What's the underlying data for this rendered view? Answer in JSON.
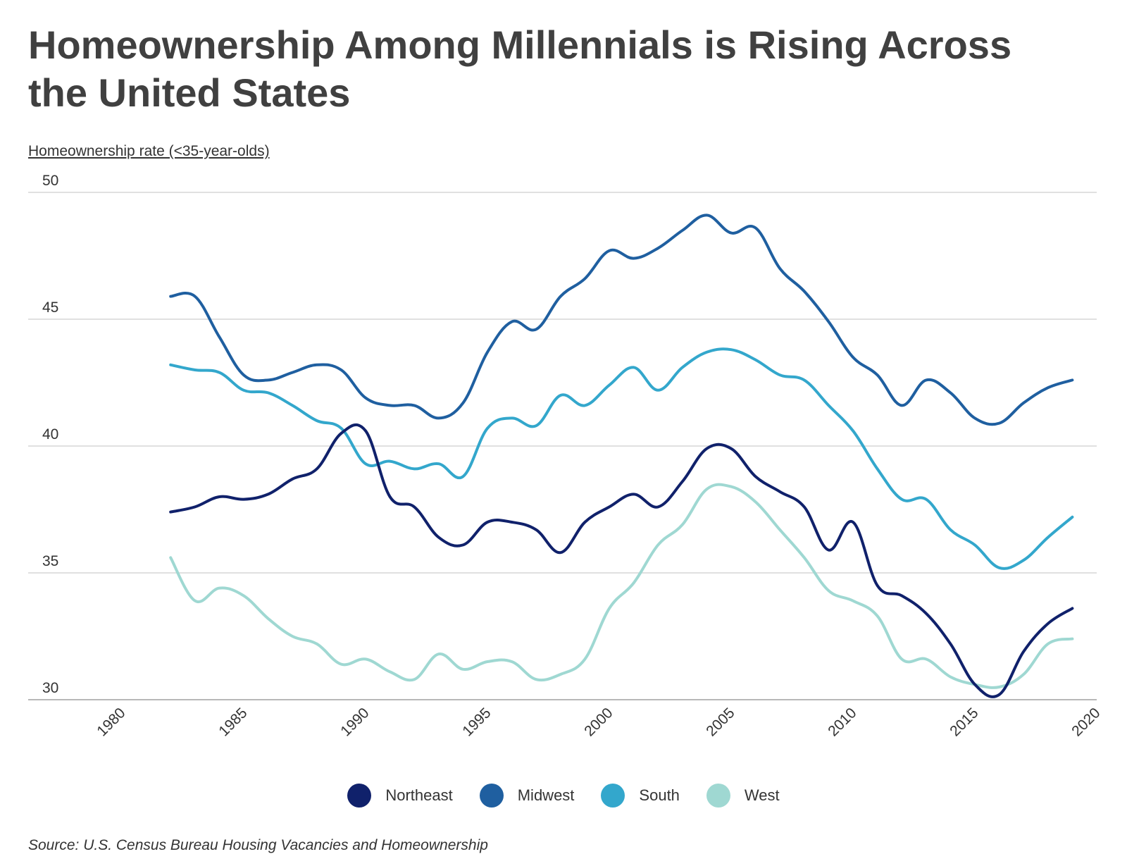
{
  "chart_data": {
    "type": "line",
    "title": "Homeownership Among Millennials is Rising Across the United States",
    "ylabel": "Homeownership rate (<35-year-olds)",
    "xlabel": "",
    "xlim": [
      1980,
      2020
    ],
    "ylim": [
      30,
      50
    ],
    "x_ticks": [
      1980,
      1985,
      1990,
      1995,
      2000,
      2005,
      2010,
      2015,
      2020
    ],
    "y_ticks": [
      30,
      35,
      40,
      45,
      50
    ],
    "grid": true,
    "legend_position": "bottom",
    "source": "Source: U.S. Census Bureau Housing Vacancies and Homeownership",
    "x": [
      1982,
      1983,
      1984,
      1985,
      1986,
      1987,
      1988,
      1989,
      1990,
      1991,
      1992,
      1993,
      1994,
      1995,
      1996,
      1997,
      1998,
      1999,
      2000,
      2001,
      2002,
      2003,
      2004,
      2005,
      2006,
      2007,
      2008,
      2009,
      2010,
      2011,
      2012,
      2013,
      2014,
      2015,
      2016,
      2017,
      2018,
      2019
    ],
    "series": [
      {
        "name": "Northeast",
        "color": "#10216b",
        "values": [
          37.4,
          37.6,
          38.0,
          37.9,
          38.1,
          38.7,
          39.1,
          40.5,
          40.6,
          38.0,
          37.6,
          36.4,
          36.1,
          37.0,
          37.0,
          36.7,
          35.8,
          37.0,
          37.6,
          38.1,
          37.6,
          38.6,
          39.9,
          39.9,
          38.8,
          38.2,
          37.6,
          35.9,
          37.0,
          34.5,
          34.1,
          33.4,
          32.2,
          30.6,
          30.2,
          31.9,
          33.0,
          33.6
        ]
      },
      {
        "name": "Midwest",
        "color": "#1f5fa0",
        "values": [
          45.9,
          45.9,
          44.3,
          42.8,
          42.6,
          42.9,
          43.2,
          43.0,
          41.9,
          41.6,
          41.6,
          41.1,
          41.7,
          43.7,
          44.9,
          44.6,
          45.9,
          46.6,
          47.7,
          47.4,
          47.8,
          48.5,
          49.1,
          48.4,
          48.6,
          47.0,
          46.1,
          44.9,
          43.5,
          42.8,
          41.6,
          42.6,
          42.1,
          41.1,
          40.9,
          41.7,
          42.3,
          42.6
        ]
      },
      {
        "name": "South",
        "color": "#33a7cc",
        "values": [
          43.2,
          43.0,
          42.9,
          42.2,
          42.1,
          41.6,
          41.0,
          40.7,
          39.3,
          39.4,
          39.1,
          39.3,
          38.8,
          40.7,
          41.1,
          40.8,
          42.0,
          41.6,
          42.4,
          43.1,
          42.2,
          43.1,
          43.7,
          43.8,
          43.4,
          42.8,
          42.6,
          41.6,
          40.6,
          39.1,
          37.9,
          37.9,
          36.7,
          36.1,
          35.2,
          35.5,
          36.4,
          37.2
        ]
      },
      {
        "name": "West",
        "color": "#9fd8d2",
        "values": [
          35.6,
          33.9,
          34.4,
          34.1,
          33.2,
          32.5,
          32.2,
          31.4,
          31.6,
          31.1,
          30.8,
          31.8,
          31.2,
          31.5,
          31.5,
          30.8,
          31.0,
          31.6,
          33.6,
          34.6,
          36.1,
          36.9,
          38.3,
          38.4,
          37.8,
          36.7,
          35.6,
          34.3,
          33.9,
          33.3,
          31.6,
          31.6,
          30.9,
          30.6,
          30.5,
          31.0,
          32.2,
          32.4
        ]
      }
    ]
  }
}
